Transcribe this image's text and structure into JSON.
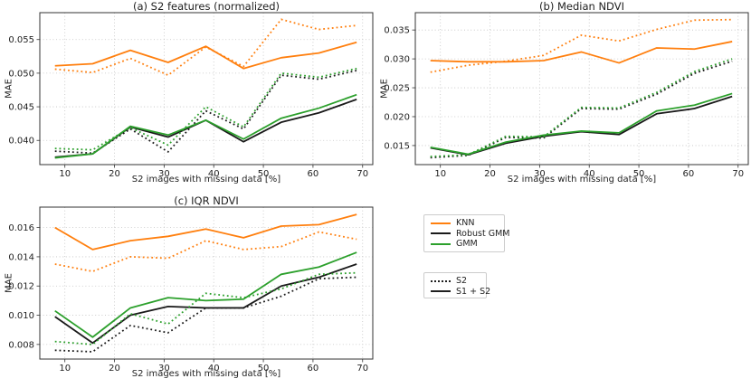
{
  "figure": {
    "background": "#ffffff",
    "shared_xlabel": "S2 images with missing data [%]",
    "shared_ylabel": "MAE"
  },
  "colors": {
    "knn": "#ff7f0e",
    "robust_gmm": "#1a1a1a",
    "gmm": "#2ca02c",
    "grid": "#c2c2c2",
    "axis": "#333333",
    "text": "#1f1f1f",
    "legend_border": "#cccccc"
  },
  "legend": {
    "models": [
      {
        "label": "KNN",
        "color_key": "knn",
        "line": "solid"
      },
      {
        "label": "Robust GMM",
        "color_key": "robust_gmm",
        "line": "solid"
      },
      {
        "label": "GMM",
        "color_key": "gmm",
        "line": "solid"
      }
    ],
    "inputs": [
      {
        "label": "S2",
        "color_key": "text",
        "line": "dotted"
      },
      {
        "label": "S1 + S2",
        "color_key": "text",
        "line": "solid"
      }
    ]
  },
  "chart_data": [
    {
      "id": "a",
      "type": "line",
      "title": "(a) S2 features (normalized)",
      "xlabel": "S2 images with missing data [%]",
      "ylabel": "MAE",
      "grid": true,
      "legend_position": "outside-figure",
      "x": [
        8,
        15.6,
        23.2,
        30.8,
        38.4,
        46,
        53.6,
        61.2,
        68.8
      ],
      "xticks": [
        10,
        20,
        30,
        40,
        50,
        60,
        70
      ],
      "xlim": [
        4.95,
        72.05
      ],
      "ylim": [
        0.0364,
        0.059
      ],
      "yticks": [
        0.04,
        0.045,
        0.05,
        0.055
      ],
      "ytick_labels": [
        "0.040",
        "0.045",
        "0.050",
        "0.055"
      ],
      "series": [
        {
          "name": "KNN S2",
          "model": "knn",
          "input": "S2",
          "line": "dotted",
          "values": [
            0.0506,
            0.0501,
            0.0522,
            0.0497,
            0.0539,
            0.051,
            0.058,
            0.0565,
            0.0571
          ]
        },
        {
          "name": "KNN S1 + S2",
          "model": "knn",
          "input": "S1 + S2",
          "line": "solid",
          "values": [
            0.0511,
            0.0514,
            0.0534,
            0.0516,
            0.054,
            0.0507,
            0.0523,
            0.053,
            0.0546
          ]
        },
        {
          "name": "Robust GMM S2",
          "model": "robust_gmm",
          "input": "S2",
          "line": "dotted",
          "values": [
            0.0384,
            0.0381,
            0.0417,
            0.0383,
            0.0444,
            0.0417,
            0.0497,
            0.0491,
            0.0504
          ]
        },
        {
          "name": "Robust GMM S1 + S2",
          "model": "robust_gmm",
          "input": "S1 + S2",
          "line": "solid",
          "values": [
            0.0375,
            0.038,
            0.042,
            0.0405,
            0.043,
            0.0398,
            0.0427,
            0.0441,
            0.0461
          ]
        },
        {
          "name": "GMM S2",
          "model": "gmm",
          "input": "S2",
          "line": "dotted",
          "values": [
            0.0388,
            0.0386,
            0.0419,
            0.0393,
            0.045,
            0.042,
            0.05,
            0.0494,
            0.0507
          ]
        },
        {
          "name": "GMM S1 + S2",
          "model": "gmm",
          "input": "S1 + S2",
          "line": "solid",
          "values": [
            0.0374,
            0.038,
            0.0421,
            0.0408,
            0.043,
            0.0402,
            0.0433,
            0.0448,
            0.0468
          ]
        }
      ]
    },
    {
      "id": "b",
      "type": "line",
      "title": "(b) Median NDVI",
      "xlabel": "S2 images with missing data [%]",
      "ylabel": "MAE",
      "grid": true,
      "x": [
        8,
        15.6,
        23.2,
        30.8,
        38.4,
        46,
        53.6,
        61.2,
        68.8
      ],
      "xticks": [
        10,
        20,
        30,
        40,
        50,
        60,
        70
      ],
      "xlim": [
        4.95,
        72.05
      ],
      "ylim": [
        0.0117,
        0.038
      ],
      "yticks": [
        0.015,
        0.02,
        0.025,
        0.03,
        0.035
      ],
      "ytick_labels": [
        "0.015",
        "0.020",
        "0.025",
        "0.030",
        "0.035"
      ],
      "series": [
        {
          "name": "KNN S2",
          "model": "knn",
          "input": "S2",
          "line": "dotted",
          "values": [
            0.0277,
            0.0289,
            0.0296,
            0.0306,
            0.0341,
            0.0331,
            0.0351,
            0.0367,
            0.0368
          ]
        },
        {
          "name": "KNN S1 + S2",
          "model": "knn",
          "input": "S1 + S2",
          "line": "solid",
          "values": [
            0.0297,
            0.0295,
            0.0295,
            0.0297,
            0.0312,
            0.0293,
            0.0319,
            0.0317,
            0.033
          ]
        },
        {
          "name": "Robust GMM S2",
          "model": "robust_gmm",
          "input": "S2",
          "line": "dotted",
          "values": [
            0.0129,
            0.0133,
            0.0164,
            0.0163,
            0.0214,
            0.0213,
            0.0239,
            0.0275,
            0.0296
          ]
        },
        {
          "name": "Robust GMM S1 + S2",
          "model": "robust_gmm",
          "input": "S1 + S2",
          "line": "solid",
          "values": [
            0.0146,
            0.0134,
            0.0154,
            0.0166,
            0.0174,
            0.0169,
            0.0205,
            0.0214,
            0.0235
          ]
        },
        {
          "name": "GMM S2",
          "model": "gmm",
          "input": "S2",
          "line": "dotted",
          "values": [
            0.0131,
            0.0134,
            0.0166,
            0.0165,
            0.0216,
            0.0215,
            0.0242,
            0.0278,
            0.03
          ]
        },
        {
          "name": "GMM S1 + S2",
          "model": "gmm",
          "input": "S1 + S2",
          "line": "solid",
          "values": [
            0.0147,
            0.0135,
            0.0156,
            0.0168,
            0.0175,
            0.0172,
            0.021,
            0.022,
            0.024
          ]
        }
      ]
    },
    {
      "id": "c",
      "type": "line",
      "title": "(c) IQR NDVI",
      "xlabel": "S2 images with missing data [%]",
      "ylabel": "MAE",
      "grid": true,
      "x": [
        8,
        15.6,
        23.2,
        30.8,
        38.4,
        46,
        53.6,
        61.2,
        68.8
      ],
      "xticks": [
        10,
        20,
        30,
        40,
        50,
        60,
        70
      ],
      "xlim": [
        4.95,
        72.05
      ],
      "ylim": [
        0.007,
        0.0174
      ],
      "yticks": [
        0.008,
        0.01,
        0.012,
        0.014,
        0.016
      ],
      "ytick_labels": [
        "0.008",
        "0.010",
        "0.012",
        "0.014",
        "0.016"
      ],
      "series": [
        {
          "name": "KNN S2",
          "model": "knn",
          "input": "S2",
          "line": "dotted",
          "values": [
            0.0135,
            0.013,
            0.014,
            0.0139,
            0.0151,
            0.0145,
            0.0147,
            0.0157,
            0.0152
          ]
        },
        {
          "name": "KNN S1 + S2",
          "model": "knn",
          "input": "S1 + S2",
          "line": "solid",
          "values": [
            0.016,
            0.0145,
            0.0151,
            0.0154,
            0.0159,
            0.0153,
            0.0161,
            0.0162,
            0.0169
          ]
        },
        {
          "name": "Robust GMM S2",
          "model": "robust_gmm",
          "input": "S2",
          "line": "dotted",
          "values": [
            0.0076,
            0.0075,
            0.0093,
            0.0088,
            0.0105,
            0.0105,
            0.0113,
            0.0125,
            0.0126
          ]
        },
        {
          "name": "Robust GMM S1 + S2",
          "model": "robust_gmm",
          "input": "S1 + S2",
          "line": "solid",
          "values": [
            0.0099,
            0.0081,
            0.01,
            0.0106,
            0.0105,
            0.0105,
            0.012,
            0.0126,
            0.0135
          ]
        },
        {
          "name": "GMM S2",
          "model": "gmm",
          "input": "S2",
          "line": "dotted",
          "values": [
            0.0082,
            0.008,
            0.0101,
            0.0094,
            0.0115,
            0.0112,
            0.0118,
            0.0128,
            0.0129
          ]
        },
        {
          "name": "GMM S1 + S2",
          "model": "gmm",
          "input": "S1 + S2",
          "line": "solid",
          "values": [
            0.0103,
            0.0085,
            0.0105,
            0.0112,
            0.011,
            0.0111,
            0.0128,
            0.0133,
            0.0143
          ]
        }
      ]
    }
  ]
}
